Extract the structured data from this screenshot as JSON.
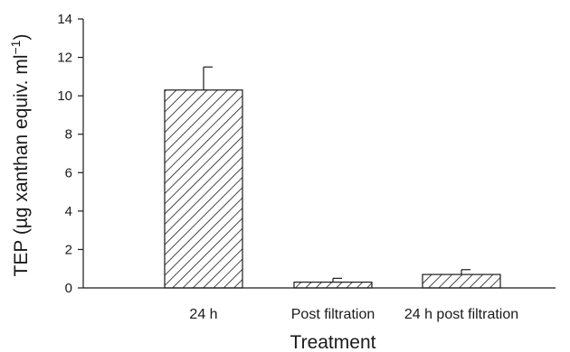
{
  "chart_data": {
    "type": "bar",
    "categories": [
      "24 h",
      "Post filtration",
      "24 h post filtration"
    ],
    "values": [
      10.3,
      0.3,
      0.7
    ],
    "errors": [
      1.2,
      0.2,
      0.25
    ],
    "xlabel": "Treatment",
    "ylabel": "TEP (µg xanthan equiv. ml",
    "ylabel_superscript": "−1",
    "ylabel_close": ")",
    "ylim": [
      0,
      14
    ],
    "yticks": [
      0,
      2,
      4,
      6,
      8,
      10,
      12,
      14
    ],
    "grid": false,
    "bar_fill": "diagonal-hatch",
    "colors": {
      "bar_stroke": "#1a1a1a",
      "hatch": "#1a1a1a",
      "axis": "#1a1a1a"
    }
  }
}
